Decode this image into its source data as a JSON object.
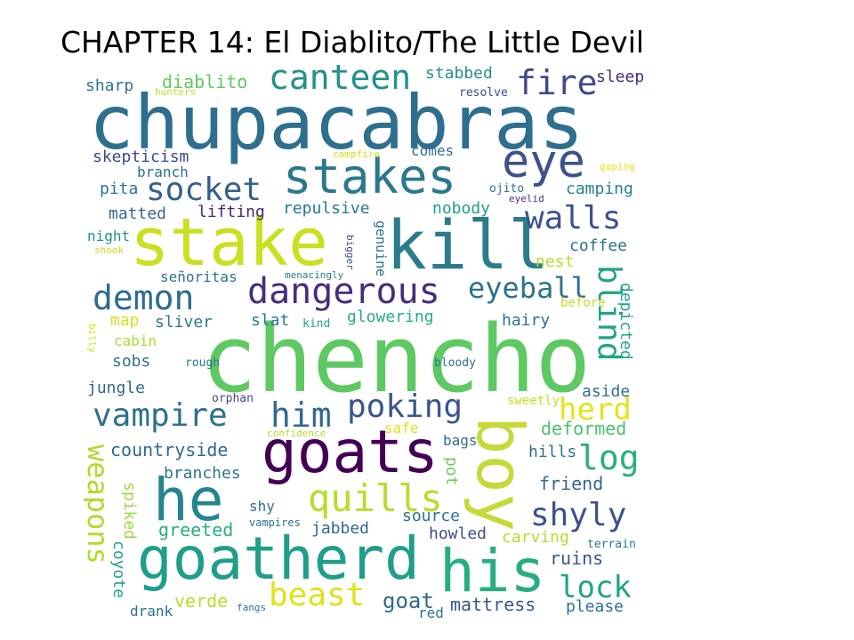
{
  "title": "CHAPTER 14: El Diablito/The Little Devil",
  "words": [
    {
      "t": "chupacabras",
      "c": "#2e6e8e"
    },
    {
      "t": "chencho",
      "c": "#5ec962"
    },
    {
      "t": "stake",
      "c": "#c8e020"
    },
    {
      "t": "kill",
      "c": "#2b7b8c"
    },
    {
      "t": "boy",
      "c": "#c6d93a"
    },
    {
      "t": "goats",
      "c": "#440154"
    },
    {
      "t": "goatherd",
      "c": "#1f9e89"
    },
    {
      "t": "his",
      "c": "#26ad81"
    },
    {
      "t": "he",
      "c": "#25858e"
    },
    {
      "t": "stakes",
      "c": "#2a788e"
    },
    {
      "t": "eye",
      "c": "#3b528b"
    },
    {
      "t": "socket",
      "c": "#35608d"
    },
    {
      "t": "dangerous",
      "c": "#472d7b"
    },
    {
      "t": "demon",
      "c": "#2f6c8e"
    },
    {
      "t": "canteen",
      "c": "#21918c"
    },
    {
      "t": "fire",
      "c": "#3e4a89"
    },
    {
      "t": "walls",
      "c": "#3b528b"
    },
    {
      "t": "eyeball",
      "c": "#2c728e"
    },
    {
      "t": "blind",
      "c": "#20a486"
    },
    {
      "t": "vampire",
      "c": "#2c728e"
    },
    {
      "t": "him",
      "c": "#31688e"
    },
    {
      "t": "poking",
      "c": "#39568c"
    },
    {
      "t": "herd",
      "c": "#e5e419"
    },
    {
      "t": "log",
      "c": "#29af7f"
    },
    {
      "t": "quills",
      "c": "#b5de2b"
    },
    {
      "t": "shyly",
      "c": "#3b528b"
    },
    {
      "t": "weapons",
      "c": "#addc30"
    },
    {
      "t": "beast",
      "c": "#dfe318"
    },
    {
      "t": "lock",
      "c": "#20a386"
    },
    {
      "t": "diablito",
      "c": "#5ec962"
    },
    {
      "t": "sharp",
      "c": "#2c728e"
    },
    {
      "t": "stabbed",
      "c": "#21918c"
    },
    {
      "t": "sleep",
      "c": "#482878"
    },
    {
      "t": "hunters",
      "c": "#bddf26"
    },
    {
      "t": "resolve",
      "c": "#3e4a89"
    },
    {
      "t": "skepticism",
      "c": "#3e4a89"
    },
    {
      "t": "branch",
      "c": "#2d708e"
    },
    {
      "t": "campfire",
      "c": "#d2e21b"
    },
    {
      "t": "comes",
      "c": "#31688e"
    },
    {
      "t": "gaping",
      "c": "#e5e419"
    },
    {
      "t": "pita",
      "c": "#2c728e"
    },
    {
      "t": "ojito",
      "c": "#2d708e"
    },
    {
      "t": "eyelid",
      "c": "#472d7b"
    },
    {
      "t": "camping",
      "c": "#277f8e"
    },
    {
      "t": "matted",
      "c": "#31688e"
    },
    {
      "t": "lifting",
      "c": "#482878"
    },
    {
      "t": "repulsive",
      "c": "#2a788e"
    },
    {
      "t": "nobody",
      "c": "#1fa088"
    },
    {
      "t": "night",
      "c": "#21918c"
    },
    {
      "t": "coffee",
      "c": "#2c728e"
    },
    {
      "t": "shook",
      "c": "#c2df23"
    },
    {
      "t": "bigger",
      "c": "#3e4a89"
    },
    {
      "t": "genuine",
      "c": "#2d708e"
    },
    {
      "t": "nest",
      "c": "#b5de2b"
    },
    {
      "t": "señoritas",
      "c": "#2c728e"
    },
    {
      "t": "menacingly",
      "c": "#2a788e"
    },
    {
      "t": "before",
      "c": "#c2df23"
    },
    {
      "t": "map",
      "c": "#d2e21b"
    },
    {
      "t": "sliver",
      "c": "#2a788e"
    },
    {
      "t": "slat",
      "c": "#297b8e"
    },
    {
      "t": "kind",
      "c": "#20a486"
    },
    {
      "t": "glowering",
      "c": "#26ad81"
    },
    {
      "t": "hairy",
      "c": "#2d708e"
    },
    {
      "t": "depicted",
      "c": "#20a486"
    },
    {
      "t": "billy",
      "c": "#d8e219"
    },
    {
      "t": "cabin",
      "c": "#aadc32"
    },
    {
      "t": "sobs",
      "c": "#2c728e"
    },
    {
      "t": "rough",
      "c": "#2a788e"
    },
    {
      "t": "bloody",
      "c": "#2c728e"
    },
    {
      "t": "jungle",
      "c": "#31688e"
    },
    {
      "t": "orphan",
      "c": "#3e4a89"
    },
    {
      "t": "aside",
      "c": "#2d708e"
    },
    {
      "t": "sweetly",
      "c": "#c8e020"
    },
    {
      "t": "safe",
      "c": "#dfe318"
    },
    {
      "t": "deformed",
      "c": "#4ac16d"
    },
    {
      "t": "confidence",
      "c": "#b5de2b"
    },
    {
      "t": "countryside",
      "c": "#31688e"
    },
    {
      "t": "bags",
      "c": "#2d708e"
    },
    {
      "t": "hills",
      "c": "#2d708e"
    },
    {
      "t": "branches",
      "c": "#2a788e"
    },
    {
      "t": "friend",
      "c": "#31688e"
    },
    {
      "t": "pot",
      "c": "#6ccd5a"
    },
    {
      "t": "spiked",
      "c": "#9bd93c"
    },
    {
      "t": "shy",
      "c": "#2d708e"
    },
    {
      "t": "vampires",
      "c": "#2c728e"
    },
    {
      "t": "source",
      "c": "#2c728e"
    },
    {
      "t": "greeted",
      "c": "#29af7f"
    },
    {
      "t": "jabbed",
      "c": "#31688e"
    },
    {
      "t": "howled",
      "c": "#3e4a89"
    },
    {
      "t": "carving",
      "c": "#b5de2b"
    },
    {
      "t": "terrain",
      "c": "#2a788e"
    },
    {
      "t": "coyote",
      "c": "#20a486"
    },
    {
      "t": "ruins",
      "c": "#39568c"
    },
    {
      "t": "verde",
      "c": "#b5de2b"
    },
    {
      "t": "fangs",
      "c": "#2d708e"
    },
    {
      "t": "goat",
      "c": "#31688e"
    },
    {
      "t": "red",
      "c": "#2d708e"
    },
    {
      "t": "mattress",
      "c": "#39568c"
    },
    {
      "t": "please",
      "c": "#2c728e"
    },
    {
      "t": "drank",
      "c": "#2c728e"
    }
  ]
}
